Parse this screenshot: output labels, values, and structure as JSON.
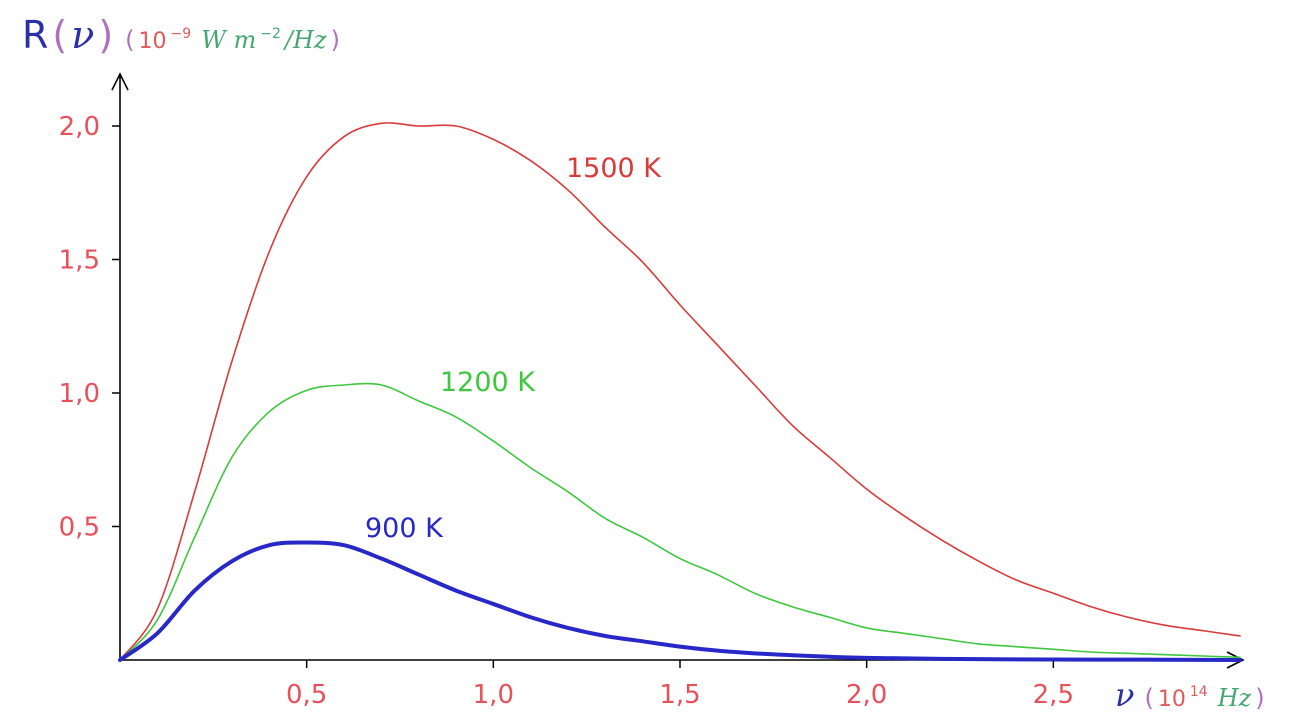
{
  "colors": {
    "axis": "#000000",
    "tick_label": "#e8505a",
    "unit_paren": "#b070c0",
    "unit_power": "#e05a5a",
    "unit_symbol": "#45a870",
    "axis_symbol": "#2a30a8"
  },
  "y_axis": {
    "title_R": "R",
    "title_nu": "ν",
    "open_paren": "(",
    "close_paren": ")",
    "unit_open": "(",
    "unit_base": "10",
    "unit_exp": "−9",
    "unit_text": "W m",
    "unit_text_exp": "−2",
    "unit_tail": "/Hz",
    "unit_close": ")",
    "ticks": [
      "0,5",
      "1,0",
      "1,5",
      "2,0"
    ]
  },
  "x_axis": {
    "title_nu": "ν",
    "unit_open": "(",
    "unit_base": "10",
    "unit_exp": "14",
    "unit_text": "Hz",
    "unit_close": ")",
    "ticks": [
      "0,5",
      "1,0",
      "1,5",
      "2,0",
      "2,5"
    ]
  },
  "chart_data": {
    "type": "line",
    "xlim": [
      0,
      3.0
    ],
    "ylim": [
      0,
      2.0
    ],
    "x_ticks": [
      0.5,
      1.0,
      1.5,
      2.0,
      2.5
    ],
    "y_ticks": [
      0.5,
      1.0,
      1.5,
      2.0
    ],
    "grid": false,
    "series": [
      {
        "name": "1500 K",
        "color": "#d93a3a",
        "line_width": 1.6,
        "points": [
          [
            0,
            0
          ],
          [
            0.1,
            0.19
          ],
          [
            0.2,
            0.63
          ],
          [
            0.3,
            1.12
          ],
          [
            0.4,
            1.53
          ],
          [
            0.5,
            1.81
          ],
          [
            0.6,
            1.96
          ],
          [
            0.7,
            2.01
          ],
          [
            0.8,
            2.0
          ],
          [
            0.9,
            2.0
          ],
          [
            1.0,
            1.95
          ],
          [
            1.1,
            1.87
          ],
          [
            1.2,
            1.76
          ],
          [
            1.3,
            1.62
          ],
          [
            1.4,
            1.49
          ],
          [
            1.5,
            1.33
          ],
          [
            1.6,
            1.18
          ],
          [
            1.7,
            1.03
          ],
          [
            1.8,
            0.88
          ],
          [
            1.9,
            0.76
          ],
          [
            2.0,
            0.64
          ],
          [
            2.1,
            0.54
          ],
          [
            2.2,
            0.45
          ],
          [
            2.3,
            0.37
          ],
          [
            2.4,
            0.3
          ],
          [
            2.5,
            0.25
          ],
          [
            2.6,
            0.2
          ],
          [
            2.7,
            0.16
          ],
          [
            2.8,
            0.13
          ],
          [
            2.9,
            0.11
          ],
          [
            3.0,
            0.09
          ]
        ]
      },
      {
        "name": "1200 K",
        "color": "#3ec83e",
        "line_width": 1.6,
        "points": [
          [
            0,
            0
          ],
          [
            0.1,
            0.15
          ],
          [
            0.2,
            0.46
          ],
          [
            0.3,
            0.76
          ],
          [
            0.4,
            0.93
          ],
          [
            0.5,
            1.01
          ],
          [
            0.6,
            1.03
          ],
          [
            0.7,
            1.03
          ],
          [
            0.8,
            0.97
          ],
          [
            0.9,
            0.91
          ],
          [
            1.0,
            0.82
          ],
          [
            1.1,
            0.72
          ],
          [
            1.2,
            0.63
          ],
          [
            1.3,
            0.53
          ],
          [
            1.4,
            0.46
          ],
          [
            1.5,
            0.38
          ],
          [
            1.6,
            0.32
          ],
          [
            1.7,
            0.25
          ],
          [
            1.8,
            0.2
          ],
          [
            1.9,
            0.16
          ],
          [
            2.0,
            0.12
          ],
          [
            2.1,
            0.1
          ],
          [
            2.2,
            0.08
          ],
          [
            2.3,
            0.06
          ],
          [
            2.4,
            0.05
          ],
          [
            2.5,
            0.04
          ],
          [
            2.6,
            0.03
          ],
          [
            2.7,
            0.025
          ],
          [
            2.8,
            0.02
          ],
          [
            2.9,
            0.015
          ],
          [
            3.0,
            0.01
          ]
        ]
      },
      {
        "name": "900 K",
        "color": "#2828c8",
        "line_width": 4,
        "points": [
          [
            0,
            0
          ],
          [
            0.1,
            0.1
          ],
          [
            0.2,
            0.26
          ],
          [
            0.3,
            0.37
          ],
          [
            0.4,
            0.43
          ],
          [
            0.5,
            0.44
          ],
          [
            0.6,
            0.43
          ],
          [
            0.7,
            0.38
          ],
          [
            0.8,
            0.32
          ],
          [
            0.9,
            0.26
          ],
          [
            1.0,
            0.21
          ],
          [
            1.1,
            0.16
          ],
          [
            1.2,
            0.12
          ],
          [
            1.3,
            0.09
          ],
          [
            1.4,
            0.07
          ],
          [
            1.5,
            0.05
          ],
          [
            1.6,
            0.035
          ],
          [
            1.7,
            0.025
          ],
          [
            1.8,
            0.018
          ],
          [
            1.9,
            0.012
          ],
          [
            2.0,
            0.008
          ],
          [
            2.2,
            0.004
          ],
          [
            2.5,
            0.002
          ],
          [
            2.8,
            0.001
          ],
          [
            3.0,
            0
          ]
        ]
      }
    ]
  }
}
